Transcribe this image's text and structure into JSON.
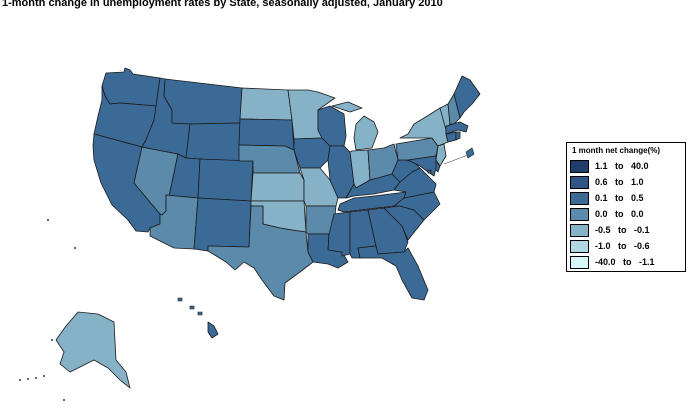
{
  "title": "1-month change in unemployment rates by State, seasonally adjusted,  January  2010",
  "legend": {
    "title": "1 month net change(%)",
    "items": [
      {
        "label": "1.1   to   40.0",
        "color": "#1f3f6a"
      },
      {
        "label": "0.6   to   1.0",
        "color": "#2f5687"
      },
      {
        "label": "0.1   to   0.5",
        "color": "#3c6a97"
      },
      {
        "label": "0.0   to   0.0",
        "color": "#5b8aab"
      },
      {
        "label": "-0.5   to   -0.1",
        "color": "#86b2c8"
      },
      {
        "label": "-1.0   to   -0.6",
        "color": "#b0d8e4"
      },
      {
        "label": "-40.0   to   -1.1",
        "color": "#d6f8f8"
      }
    ]
  },
  "states": {
    "WA": "0.1 to 0.5",
    "OR": "0.1 to 0.5",
    "CA": "0.1 to 0.5",
    "ID": "0.1 to 0.5",
    "MT": "0.1 to 0.5",
    "WY": "0.1 to 0.5",
    "UT": "0.1 to 0.5",
    "CO": "0.1 to 0.5",
    "AZ": "0.0 to 0.0",
    "NM": "0.1 to 0.5",
    "NV": "0.0 to 0.0",
    "ND": "-0.5 to -0.1",
    "SD": "0.1 to 0.5",
    "NE": "0.0 to 0.0",
    "KS": "-0.5 to -0.1",
    "OK": "-0.5 to -0.1",
    "TX": "0.0 to 0.0",
    "MN": "-0.5 to -0.1",
    "IA": "0.1 to 0.5",
    "MO": "-0.5 to -0.1",
    "AR": "0.0 to 0.0",
    "LA": "0.1 to 0.5",
    "WI": "0.1 to 0.5",
    "IL": "0.1 to 0.5",
    "MI": "-0.5 to -0.1",
    "IN": "-0.5 to -0.1",
    "OH": "0.0 to 0.0",
    "KY": "0.1 to 0.5",
    "TN": "0.1 to 0.5",
    "MS": "0.1 to 0.5",
    "AL": "0.1 to 0.5",
    "GA": "0.1 to 0.5",
    "FL": "0.1 to 0.5",
    "SC": "0.1 to 0.5",
    "NC": "0.1 to 0.5",
    "VA": "0.1 to 0.5",
    "WV": "0.1 to 0.5",
    "PA": "0.0 to 0.0",
    "NY": "-0.5 to -0.1",
    "VT": "-0.5 to -0.1",
    "NH": "0.0 to 0.0",
    "ME": "0.1 to 0.5",
    "MA": "0.1 to 0.5",
    "CT": "0.1 to 0.5",
    "RI": "0.1 to 0.5",
    "NJ": "-0.5 to -0.1",
    "DE": "0.1 to 0.5",
    "MD": "0.1 to 0.5",
    "DC": "0.1 to 0.5",
    "AK": "-0.5 to -0.1",
    "HI": "0.1 to 0.5"
  }
}
